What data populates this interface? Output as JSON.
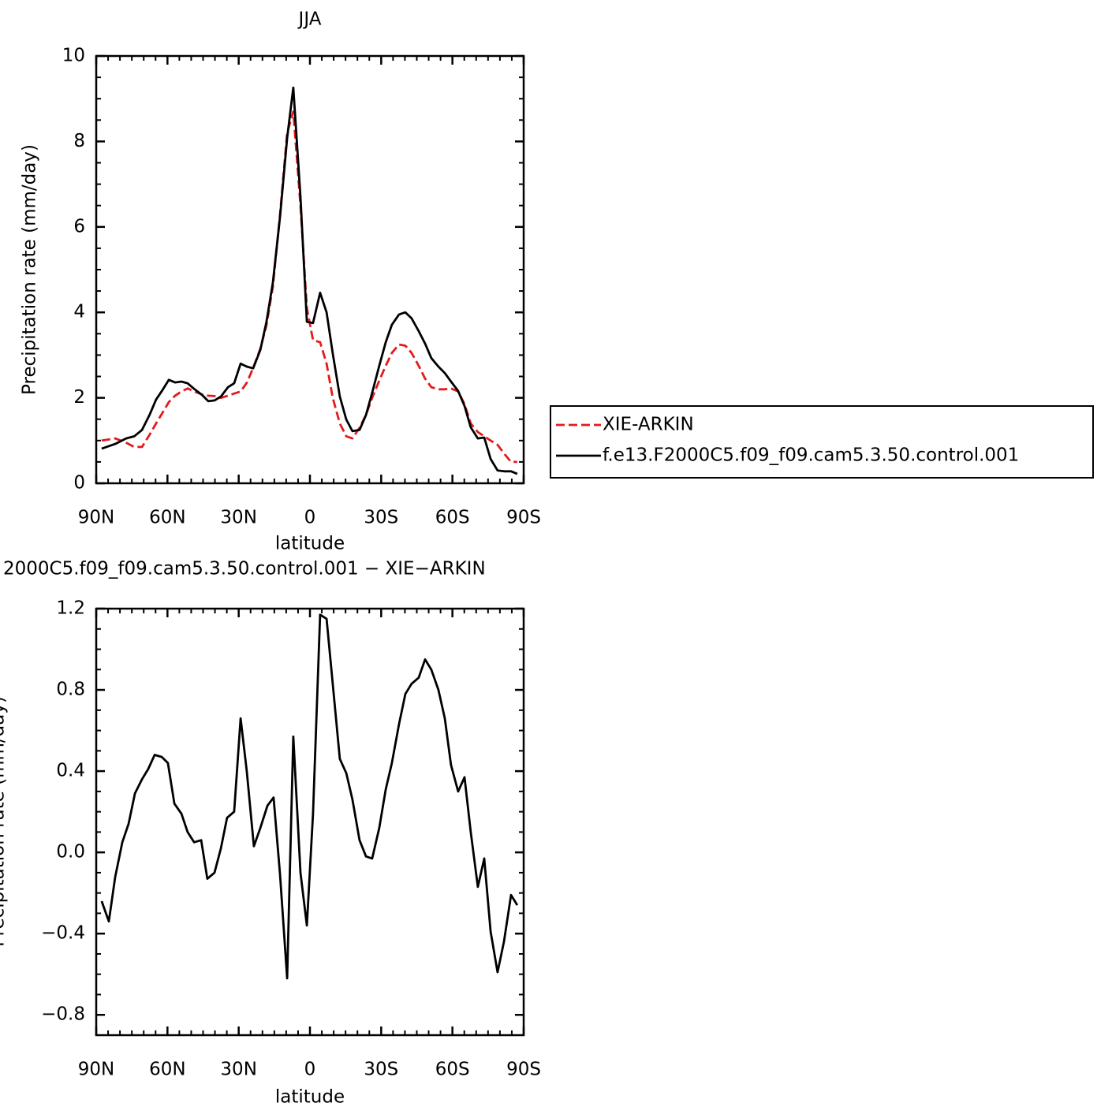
{
  "chart_data": [
    {
      "type": "line",
      "title": "JJA",
      "x_label": "latitude",
      "y_label": "Precipitation rate (mm/day)",
      "x": [
        87.7,
        82,
        77.4,
        74,
        70.7,
        67.4,
        64.8,
        62.1,
        59.4,
        56.8,
        54.1,
        51.5,
        48.8,
        45.5,
        42.8,
        40.2,
        37.5,
        34.5,
        31.9,
        29.2,
        26.6,
        23.9,
        20.9,
        18.3,
        15.6,
        12.6,
        9.6,
        7.0,
        4.0,
        1.3,
        -1.3,
        -4.3,
        -7.0,
        -9.6,
        -12.6,
        -15.3,
        -17.9,
        -20.9,
        -23.6,
        -26.2,
        -29.2,
        -31.9,
        -34.5,
        -37.5,
        -40.2,
        -42.8,
        -45.8,
        -48.5,
        -51.1,
        -54.1,
        -56.8,
        -59.4,
        -62.4,
        -65.1,
        -67.7,
        -70.7,
        -73.4,
        -76.1,
        -79.0,
        -81.7,
        -84.7,
        -87.3
      ],
      "series": [
        {
          "name": "XIE-ARKIN",
          "color": "#e41a1c",
          "line_style": "dashed",
          "values": [
            1.0,
            1.05,
            0.95,
            0.85,
            0.85,
            1.15,
            1.4,
            1.65,
            1.9,
            2.05,
            2.15,
            2.22,
            2.15,
            2.08,
            2.05,
            2.04,
            2.0,
            2.05,
            2.1,
            2.15,
            2.35,
            2.7,
            3.15,
            3.7,
            4.6,
            6.3,
            8.2,
            8.7,
            6.5,
            4.1,
            3.35,
            3.3,
            2.8,
            2.0,
            1.4,
            1.1,
            1.05,
            1.3,
            1.6,
            2.0,
            2.4,
            2.75,
            3.05,
            3.25,
            3.22,
            3.05,
            2.75,
            2.45,
            2.25,
            2.2,
            2.2,
            2.22,
            2.15,
            1.85,
            1.4,
            1.2,
            1.1,
            1.0,
            0.9,
            0.7,
            0.5,
            0.5
          ]
        },
        {
          "name": "f.e13.F2000C5.f09_f09.cam5.3.50.control.001",
          "color": "#000000",
          "line_style": "solid",
          "values": [
            0.81,
            0.92,
            1.05,
            1.1,
            1.25,
            1.62,
            1.96,
            2.18,
            2.42,
            2.36,
            2.38,
            2.34,
            2.21,
            2.07,
            1.92,
            1.94,
            2.03,
            2.25,
            2.34,
            2.8,
            2.73,
            2.69,
            3.12,
            3.78,
            4.7,
            6.24,
            8.08,
            9.26,
            6.7,
            3.78,
            3.75,
            4.46,
            4.0,
            3.04,
            2.03,
            1.49,
            1.22,
            1.25,
            1.6,
            2.12,
            2.75,
            3.3,
            3.71,
            3.95,
            4.0,
            3.86,
            3.56,
            3.27,
            2.93,
            2.73,
            2.58,
            2.38,
            2.16,
            1.81,
            1.31,
            1.05,
            1.07,
            0.57,
            0.3,
            0.28,
            0.28,
            0.22
          ]
        }
      ],
      "xlim": [
        90,
        -90
      ],
      "xticks": [
        {
          "value": 90,
          "label": "90N"
        },
        {
          "value": 60,
          "label": "60N"
        },
        {
          "value": 30,
          "label": "30N"
        },
        0,
        {
          "value": -30,
          "label": "30S"
        },
        {
          "value": -60,
          "label": "60S"
        },
        {
          "value": -90,
          "label": "90S"
        }
      ],
      "ylim": [
        0,
        10
      ],
      "yticks": [
        0,
        2,
        4,
        6,
        8,
        10
      ],
      "grid": false,
      "legend": "right"
    },
    {
      "type": "line",
      "title": "2000C5.f09_f09.cam5.3.50.control.001 − XIE−ARKIN",
      "x_label": "latitude",
      "y_label": "Precipitation rate (mm/day)",
      "x": [
        87.7,
        84.7,
        82,
        79,
        76.4,
        73.7,
        70.7,
        68.1,
        65.4,
        62.4,
        59.8,
        57.1,
        54.1,
        51.5,
        48.8,
        45.8,
        43.2,
        40.2,
        37.5,
        34.9,
        31.9,
        29.2,
        26.6,
        23.6,
        20.9,
        17.9,
        15.3,
        12.6,
        9.6,
        7.0,
        4.0,
        1.3,
        -1.3,
        -4.3,
        -7.0,
        -9.6,
        -12.6,
        -15.3,
        -17.9,
        -20.9,
        -23.6,
        -26.2,
        -29.2,
        -31.9,
        -34.5,
        -37.5,
        -40.2,
        -42.8,
        -45.8,
        -48.5,
        -51.1,
        -54.1,
        -56.8,
        -59.4,
        -62.4,
        -65.1,
        -67.7,
        -70.7,
        -73.4,
        -76.1,
        -79.0,
        -81.7,
        -84.7,
        -87.3
      ],
      "values": [
        -0.24,
        -0.34,
        -0.12,
        0.05,
        0.14,
        0.29,
        0.36,
        0.41,
        0.48,
        0.47,
        0.44,
        0.24,
        0.19,
        0.1,
        0.05,
        0.06,
        -0.13,
        -0.1,
        0.02,
        0.17,
        0.2,
        0.66,
        0.4,
        0.03,
        0.12,
        0.23,
        0.27,
        -0.11,
        -0.62,
        0.57,
        -0.1,
        -0.36,
        0.19,
        1.17,
        1.15,
        0.83,
        0.46,
        0.39,
        0.26,
        0.06,
        -0.02,
        -0.03,
        0.12,
        0.31,
        0.44,
        0.63,
        0.78,
        0.83,
        0.86,
        0.95,
        0.9,
        0.8,
        0.66,
        0.43,
        0.3,
        0.37,
        0.1,
        -0.17,
        -0.03,
        -0.39,
        -0.59,
        -0.44,
        -0.21,
        -0.26
      ],
      "color": "#000000",
      "xlim": [
        90,
        -90
      ],
      "xticks": [
        {
          "value": 90,
          "label": "90N"
        },
        {
          "value": 60,
          "label": "60N"
        },
        {
          "value": 30,
          "label": "30N"
        },
        0,
        {
          "value": -30,
          "label": "30S"
        },
        {
          "value": -60,
          "label": "60S"
        },
        {
          "value": -90,
          "label": "90S"
        }
      ],
      "ylim": [
        -0.9,
        1.2
      ],
      "yticks": [
        {
          "value": -0.8,
          "label": "−0.8"
        },
        {
          "value": -0.4,
          "label": "−0.4"
        },
        {
          "value": 0,
          "label": "0.0"
        },
        0.4,
        0.8,
        1.2
      ],
      "grid": false
    }
  ]
}
